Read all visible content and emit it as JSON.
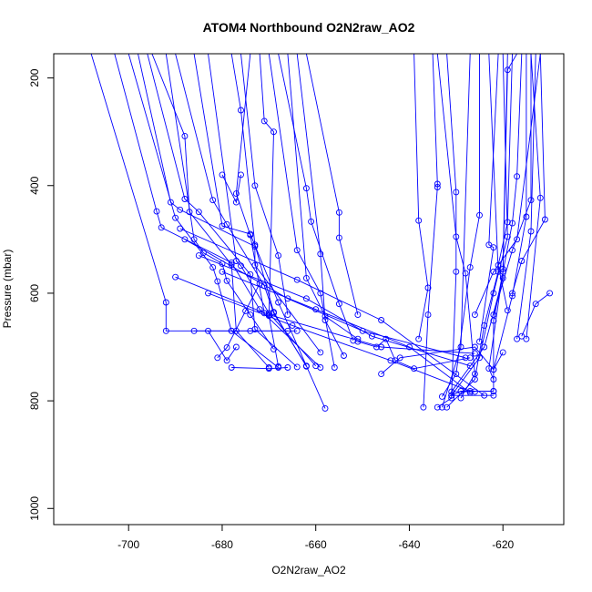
{
  "chart_data": {
    "type": "line",
    "title": "ATOM4 Northbound O2N2raw_AO2",
    "xlabel": "O2N2raw_AO2",
    "ylabel": "Pressure (mbar)",
    "xlim": [
      -716,
      -607
    ],
    "ylim": [
      1030,
      155
    ],
    "y_inverted": true,
    "grid": false,
    "legend": "none",
    "line_color": "#0000ff",
    "marker": "open-circle",
    "x_ticks": [
      -700,
      -680,
      -660,
      -640,
      -620
    ],
    "x_tick_labels": [
      "-700",
      "-680",
      "-660",
      "-640",
      "-620"
    ],
    "y_ticks": [
      200,
      400,
      600,
      800,
      1000
    ],
    "y_tick_labels": [
      "200",
      "400",
      "600",
      "800",
      "1000"
    ],
    "series": [
      {
        "values": [
          [
            -708,
            155
          ],
          [
            -692,
            617
          ],
          [
            -692,
            670
          ],
          [
            -666,
            670
          ]
        ]
      },
      {
        "values": [
          [
            -703,
            155
          ],
          [
            -694,
            448
          ],
          [
            -693,
            478
          ],
          [
            -678,
            543
          ],
          [
            -672,
            630
          ],
          [
            -659,
            738
          ]
        ]
      },
      {
        "values": [
          [
            -698,
            155
          ],
          [
            -691,
            431
          ],
          [
            -689,
            445
          ],
          [
            -673,
            513
          ],
          [
            -673,
            548
          ],
          [
            -659,
            710
          ]
        ]
      },
      {
        "values": [
          [
            -695,
            155
          ],
          [
            -688,
            308
          ],
          [
            -687,
            449
          ],
          [
            -678,
            547
          ],
          [
            -677,
            670
          ],
          [
            -670,
            738
          ]
        ]
      },
      {
        "values": [
          [
            -690,
            155
          ],
          [
            -682,
            427
          ],
          [
            -679,
            472
          ],
          [
            -671,
            586
          ],
          [
            -669,
            637
          ],
          [
            -662,
            735
          ]
        ]
      },
      {
        "values": [
          [
            -686,
            155
          ],
          [
            -680,
            475
          ],
          [
            -674,
            490
          ],
          [
            -668,
            617
          ],
          [
            -658,
            814
          ]
        ]
      },
      {
        "values": [
          [
            -683,
            155
          ],
          [
            -677,
            540
          ],
          [
            -676,
            549
          ],
          [
            -670,
            637
          ],
          [
            -660,
            735
          ]
        ]
      },
      {
        "values": [
          [
            -700,
            155
          ],
          [
            -690,
            460
          ],
          [
            -682,
            552
          ],
          [
            -681,
            578
          ],
          [
            -678,
            670
          ],
          [
            -668,
            738
          ]
        ]
      },
      {
        "values": [
          [
            -696,
            155
          ],
          [
            -688,
            425
          ],
          [
            -685,
            449
          ],
          [
            -674,
            565
          ],
          [
            -673,
            667
          ],
          [
            -664,
            737
          ]
        ]
      },
      {
        "values": [
          [
            -692,
            155
          ],
          [
            -686,
            500
          ],
          [
            -684,
            525
          ],
          [
            -680,
            545
          ],
          [
            -679,
            577
          ],
          [
            -674,
            640
          ],
          [
            -669,
            704
          ]
        ]
      },
      {
        "values": [
          [
            -678,
            155
          ],
          [
            -676,
            260
          ],
          [
            -673,
            510
          ],
          [
            -669,
            635
          ],
          [
            -662,
            736
          ]
        ]
      },
      {
        "values": [
          [
            -676,
            155
          ],
          [
            -673,
            400
          ],
          [
            -668,
            530
          ],
          [
            -666,
            640
          ]
        ]
      },
      {
        "values": [
          [
            -674,
            155
          ],
          [
            -677,
            415
          ],
          [
            -674,
            492
          ],
          [
            -671,
            637
          ]
        ]
      },
      {
        "values": [
          [
            -672,
            155
          ],
          [
            -671,
            280
          ],
          [
            -669,
            300
          ],
          [
            -670,
            642
          ],
          [
            -668,
            736
          ]
        ]
      },
      {
        "values": [
          [
            -686,
            670
          ],
          [
            -678,
            670
          ],
          [
            -674,
            670
          ],
          [
            -664,
            670
          ]
        ]
      },
      {
        "values": [
          [
            -681,
            720
          ],
          [
            -679,
            701
          ],
          [
            -675,
            633
          ],
          [
            -672,
            582
          ]
        ]
      },
      {
        "values": [
          [
            -678,
            738
          ],
          [
            -670,
            740
          ],
          [
            -666,
            738
          ]
        ]
      },
      {
        "values": [
          [
            -683,
            670
          ],
          [
            -679,
            725
          ],
          [
            -677,
            700
          ]
        ]
      },
      {
        "values": [
          [
            -676,
            380
          ],
          [
            -677,
            431
          ],
          [
            -680,
            380
          ]
        ]
      },
      {
        "values": [
          [
            -670,
            155
          ],
          [
            -664,
            520
          ],
          [
            -659,
            600
          ],
          [
            -656,
            738
          ]
        ]
      },
      {
        "values": [
          [
            -668,
            155
          ],
          [
            -662,
            405
          ],
          [
            -661,
            467
          ],
          [
            -655,
            620
          ],
          [
            -652,
            688
          ]
        ]
      },
      {
        "values": [
          [
            -666,
            155
          ],
          [
            -662,
            572
          ],
          [
            -658,
            643
          ],
          [
            -651,
            685
          ]
        ]
      },
      {
        "values": [
          [
            -664,
            155
          ],
          [
            -659,
            527
          ],
          [
            -658,
            650
          ],
          [
            -654,
            716
          ]
        ]
      },
      {
        "values": [
          [
            -662,
            155
          ],
          [
            -655,
            450
          ],
          [
            -655,
            497
          ],
          [
            -651,
            640
          ]
        ]
      },
      {
        "values": [
          [
            -688,
            500
          ],
          [
            -666,
            610
          ],
          [
            -650,
            670
          ],
          [
            -628,
            720
          ]
        ]
      },
      {
        "values": [
          [
            -690,
            570
          ],
          [
            -670,
            640
          ],
          [
            -646,
            700
          ],
          [
            -626,
            712
          ]
        ]
      },
      {
        "values": [
          [
            -685,
            530
          ],
          [
            -662,
            610
          ],
          [
            -648,
            680
          ],
          [
            -627,
            735
          ]
        ]
      },
      {
        "values": [
          [
            -683,
            600
          ],
          [
            -665,
            660
          ],
          [
            -644,
            725
          ],
          [
            -627,
            782
          ]
        ]
      },
      {
        "values": [
          [
            -680,
            560
          ],
          [
            -660,
            630
          ],
          [
            -640,
            700
          ],
          [
            -627,
            785
          ]
        ]
      },
      {
        "values": [
          [
            -689,
            480
          ],
          [
            -664,
            575
          ],
          [
            -646,
            650
          ],
          [
            -624,
            790
          ]
        ]
      },
      {
        "values": [
          [
            -651,
            690
          ],
          [
            -647,
            700
          ],
          [
            -645,
            685
          ],
          [
            -643,
            725
          ],
          [
            -639,
            740
          ],
          [
            -627,
            720
          ]
        ]
      },
      {
        "values": [
          [
            -646,
            750
          ],
          [
            -642,
            720
          ],
          [
            -626,
            700
          ],
          [
            -622,
            742
          ],
          [
            -620,
            710
          ]
        ]
      },
      {
        "values": [
          [
            -639,
            155
          ],
          [
            -638,
            465
          ],
          [
            -636,
            590
          ],
          [
            -638,
            685
          ]
        ]
      },
      {
        "values": [
          [
            -635,
            155
          ],
          [
            -634,
            397
          ],
          [
            -634,
            403
          ],
          [
            -636,
            640
          ],
          [
            -637,
            812
          ]
        ]
      },
      {
        "values": [
          [
            -634,
            155
          ],
          [
            -630,
            495
          ],
          [
            -628,
            563
          ],
          [
            -626,
            750
          ],
          [
            -629,
            795
          ]
        ]
      },
      {
        "values": [
          [
            -632,
            155
          ],
          [
            -630,
            412
          ],
          [
            -630,
            560
          ],
          [
            -631,
            795
          ],
          [
            -634,
            812
          ]
        ]
      },
      {
        "values": [
          [
            -627,
            155
          ],
          [
            -629,
            700
          ],
          [
            -633,
            812
          ]
        ]
      },
      {
        "values": [
          [
            -625,
            155
          ],
          [
            -625,
            455
          ],
          [
            -627,
            552
          ],
          [
            -630,
            750
          ],
          [
            -633,
            792
          ]
        ]
      },
      {
        "values": [
          [
            -623,
            155
          ],
          [
            -621,
            560
          ],
          [
            -624,
            660
          ],
          [
            -626,
            760
          ],
          [
            -632,
            812
          ]
        ]
      },
      {
        "values": [
          [
            -620,
            155
          ],
          [
            -619,
            495
          ],
          [
            -622,
            600
          ],
          [
            -625,
            720
          ],
          [
            -631,
            790
          ],
          [
            -622,
            790
          ]
        ]
      },
      {
        "values": [
          [
            -619,
            155
          ],
          [
            -620,
            555
          ],
          [
            -620,
            572
          ],
          [
            -624,
            700
          ],
          [
            -631,
            783
          ],
          [
            -626,
            783
          ]
        ]
      },
      {
        "values": [
          [
            -617,
            155
          ],
          [
            -619,
            185
          ],
          [
            -620,
            560
          ],
          [
            -623,
            740
          ],
          [
            -622,
            760
          ]
        ]
      },
      {
        "values": [
          [
            -616,
            155
          ],
          [
            -617,
            383
          ],
          [
            -618,
            470
          ],
          [
            -622,
            651
          ],
          [
            -622,
            782
          ]
        ]
      },
      {
        "values": [
          [
            -615,
            155
          ],
          [
            -615,
            458
          ],
          [
            -618,
            605
          ],
          [
            -622,
            742
          ]
        ]
      },
      {
        "values": [
          [
            -614,
            155
          ],
          [
            -614,
            427
          ],
          [
            -618,
            520
          ],
          [
            -622,
            640
          ]
        ]
      },
      {
        "values": [
          [
            -614,
            155
          ],
          [
            -612,
            423
          ],
          [
            -615,
            685
          ]
        ]
      },
      {
        "values": [
          [
            -613,
            155
          ],
          [
            -614,
            485
          ],
          [
            -617,
            685
          ]
        ]
      },
      {
        "values": [
          [
            -621,
            155
          ],
          [
            -623,
            510
          ],
          [
            -622,
            515
          ],
          [
            -625,
            690
          ]
        ]
      },
      {
        "values": [
          [
            -618,
            155
          ],
          [
            -619,
            468
          ],
          [
            -621,
            548
          ],
          [
            -619,
            632
          ]
        ]
      },
      {
        "values": [
          [
            -612,
            155
          ],
          [
            -611,
            463
          ],
          [
            -616,
            540
          ],
          [
            -618,
            600
          ]
        ]
      },
      {
        "values": [
          [
            -610,
            600
          ],
          [
            -613,
            620
          ],
          [
            -616,
            680
          ]
        ]
      },
      {
        "values": [
          [
            -612,
            155
          ],
          [
            -617,
            500
          ],
          [
            -622,
            560
          ],
          [
            -626,
            640
          ]
        ]
      },
      {
        "values": [
          [
            -631,
            790
          ],
          [
            -629,
            782
          ],
          [
            -622,
            782
          ]
        ]
      }
    ]
  }
}
